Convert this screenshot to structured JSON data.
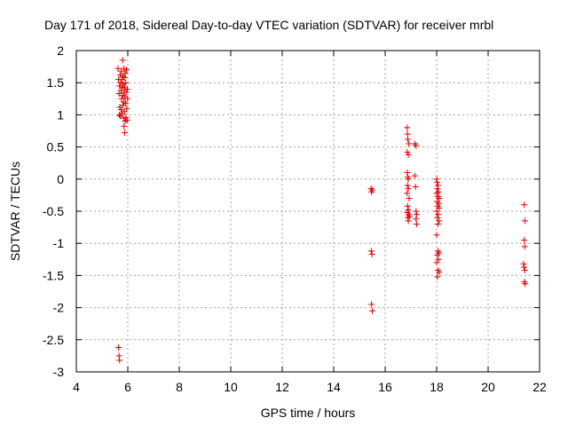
{
  "chart_data": {
    "type": "scatter",
    "title": "Day 171 of 2018, Sidereal Day-to-day VTEC variation (SDTVAR) for receiver mrbl",
    "xlabel": "GPS time / hours",
    "ylabel": "SDTVAR / TECUs",
    "xlim": [
      4,
      22
    ],
    "ylim": [
      -3,
      2
    ],
    "xticks": [
      "4",
      "6",
      "8",
      "10",
      "12",
      "14",
      "16",
      "18",
      "20",
      "22"
    ],
    "yticks": [
      "-3",
      "-2.5",
      "-2",
      "-1.5",
      "-1",
      "-0.5",
      "0",
      "0.5",
      "1",
      "1.5",
      "2"
    ],
    "grid": true,
    "marker": "plus",
    "color": "#dd0000",
    "series": [
      {
        "points": [
          [
            5.62,
            1.72
          ],
          [
            5.64,
            1.55
          ],
          [
            5.66,
            1.33
          ],
          [
            5.67,
            1.0
          ],
          [
            5.68,
            1.45
          ],
          [
            5.69,
            1.12
          ],
          [
            5.7,
            1.62
          ],
          [
            5.71,
            0.98
          ],
          [
            5.72,
            1.5
          ],
          [
            5.73,
            1.38
          ],
          [
            5.74,
            1.08
          ],
          [
            5.75,
            1.68
          ],
          [
            5.76,
            1.25
          ],
          [
            5.77,
            1.55
          ],
          [
            5.78,
            1.02
          ],
          [
            5.79,
            1.43
          ],
          [
            5.8,
            1.3
          ],
          [
            5.8,
            1.85
          ],
          [
            5.81,
            1.15
          ],
          [
            5.82,
            1.6
          ],
          [
            5.83,
            0.95
          ],
          [
            5.83,
            1.48
          ],
          [
            5.84,
            1.2
          ],
          [
            5.85,
            1.72
          ],
          [
            5.85,
            0.82
          ],
          [
            5.86,
            1.35
          ],
          [
            5.87,
            1.05
          ],
          [
            5.87,
            1.58
          ],
          [
            5.88,
            0.72
          ],
          [
            5.88,
            1.42
          ],
          [
            5.89,
            1.28
          ],
          [
            5.9,
            0.9
          ],
          [
            5.9,
            1.65
          ],
          [
            5.91,
            1.18
          ],
          [
            5.92,
            1.5
          ],
          [
            5.93,
            0.96
          ],
          [
            5.94,
            1.35
          ],
          [
            5.95,
            1.7
          ],
          [
            5.96,
            1.1
          ],
          [
            5.97,
            0.92
          ],
          [
            5.98,
            1.4
          ],
          [
            5.99,
            1.25
          ],
          [
            5.64,
            -2.62
          ],
          [
            5.66,
            -2.75
          ],
          [
            5.68,
            -2.82
          ]
        ]
      },
      {
        "points": [
          [
            15.45,
            -0.15
          ],
          [
            15.47,
            -0.2
          ],
          [
            15.5,
            -0.17
          ],
          [
            15.46,
            -1.12
          ],
          [
            15.49,
            -1.17
          ],
          [
            15.47,
            -1.95
          ],
          [
            15.5,
            -2.05
          ]
        ]
      },
      {
        "points": [
          [
            16.85,
            0.8
          ],
          [
            16.87,
            0.7
          ],
          [
            16.88,
            0.62
          ],
          [
            16.86,
            0.42
          ],
          [
            16.9,
            0.38
          ],
          [
            16.92,
            0.55
          ],
          [
            16.86,
            0.1
          ],
          [
            16.88,
            0.03
          ],
          [
            16.9,
            0.0
          ],
          [
            16.87,
            -0.1
          ],
          [
            16.9,
            -0.15
          ],
          [
            16.85,
            -0.22
          ],
          [
            16.93,
            -0.3
          ],
          [
            16.87,
            -0.42
          ],
          [
            16.9,
            -0.48
          ],
          [
            16.86,
            -0.52
          ],
          [
            16.92,
            -0.55
          ],
          [
            16.88,
            -0.6
          ],
          [
            16.95,
            -0.58
          ],
          [
            16.9,
            -0.65
          ],
          [
            17.15,
            0.55
          ],
          [
            17.2,
            0.52
          ],
          [
            17.15,
            0.05
          ],
          [
            17.18,
            -0.12
          ],
          [
            17.2,
            -0.5
          ],
          [
            17.22,
            -0.55
          ],
          [
            17.2,
            -0.62
          ],
          [
            17.22,
            -0.7
          ]
        ]
      },
      {
        "points": [
          [
            18.0,
            0.0
          ],
          [
            18.02,
            -0.05
          ],
          [
            18.05,
            -0.1
          ],
          [
            18.03,
            -0.15
          ],
          [
            18.07,
            -0.2
          ],
          [
            18.0,
            -0.22
          ],
          [
            18.05,
            -0.27
          ],
          [
            18.1,
            -0.3
          ],
          [
            18.02,
            -0.35
          ],
          [
            18.08,
            -0.38
          ],
          [
            18.04,
            -0.42
          ],
          [
            18.1,
            -0.45
          ],
          [
            18.0,
            -0.5
          ],
          [
            18.06,
            -0.55
          ],
          [
            18.03,
            -0.6
          ],
          [
            18.1,
            -0.65
          ],
          [
            18.05,
            -0.7
          ],
          [
            18.0,
            -0.87
          ],
          [
            18.05,
            -1.12
          ],
          [
            18.1,
            -1.15
          ],
          [
            18.02,
            -1.18
          ],
          [
            18.07,
            -1.25
          ],
          [
            18.0,
            -1.3
          ],
          [
            18.05,
            -1.42
          ],
          [
            18.1,
            -1.45
          ],
          [
            18.03,
            -1.52
          ]
        ]
      },
      {
        "points": [
          [
            21.4,
            -0.4
          ],
          [
            21.43,
            -0.65
          ],
          [
            21.4,
            -0.95
          ],
          [
            21.42,
            -1.05
          ],
          [
            21.38,
            -1.32
          ],
          [
            21.4,
            -1.37
          ],
          [
            21.43,
            -1.42
          ],
          [
            21.41,
            -1.6
          ],
          [
            21.44,
            -1.63
          ]
        ]
      }
    ]
  }
}
